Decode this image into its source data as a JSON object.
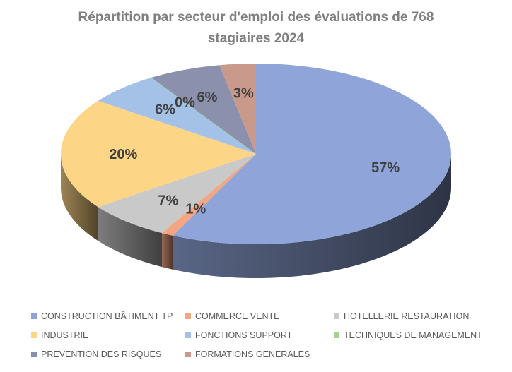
{
  "chart_data": {
    "type": "pie",
    "title": "Répartition par secteur d'emploi des évaluations de 768 stagiaires 2024",
    "title_lines": [
      "Répartition par secteur d'emploi des évaluations de 768",
      "stagiaires 2024"
    ],
    "legend_position": "bottom",
    "slices": [
      {
        "name": "CONSTRUCTION BÂTIMENT TP",
        "value": 57,
        "label": "57%",
        "color": "#8fa4d8"
      },
      {
        "name": "COMMERCE VENTE",
        "value": 1,
        "label": "1%",
        "color": "#f4a582"
      },
      {
        "name": "HOTELLERIE RESTAURATION",
        "value": 7,
        "label": "7%",
        "color": "#c9c9c9"
      },
      {
        "name": "INDUSTRIE",
        "value": 20,
        "label": "20%",
        "color": "#fdd587"
      },
      {
        "name": "FONCTIONS SUPPORT",
        "value": 6,
        "label": "6%",
        "color": "#a4c2e8"
      },
      {
        "name": "TECHNIQUES DE MANAGEMENT",
        "value": 0,
        "label": "0%",
        "color": "#a9d18e"
      },
      {
        "name": "PREVENTION DES RISQUES",
        "value": 6,
        "label": "6%",
        "color": "#8b90ad"
      },
      {
        "name": "FORMATIONS GENERALES",
        "value": 3,
        "label": "3%",
        "color": "#c99a8c"
      }
    ]
  }
}
